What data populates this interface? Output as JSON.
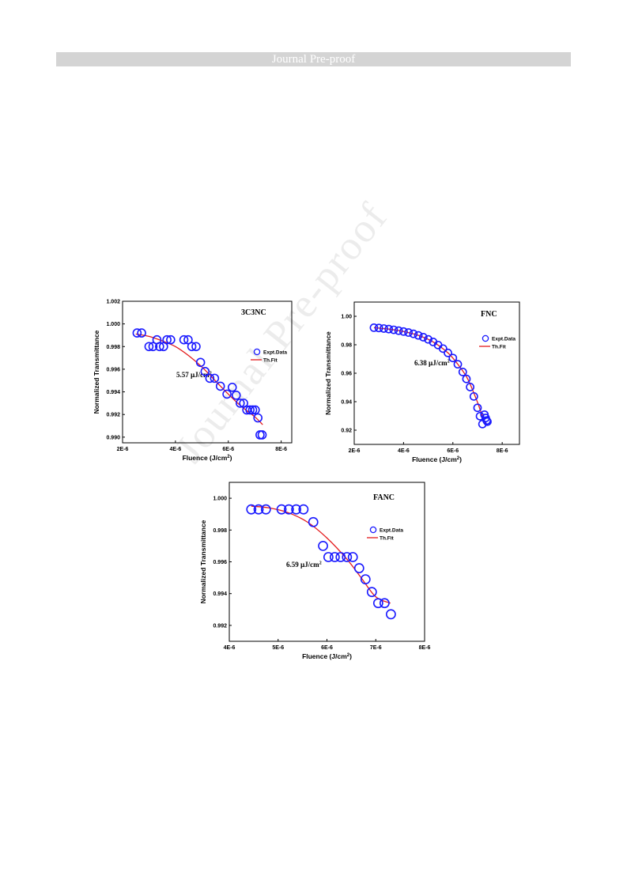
{
  "header": {
    "banner": "Journal Pre-proof"
  },
  "watermark": "Journal Pre-proof",
  "colors": {
    "marker": "#1a1aff",
    "fit": "#e31a1c",
    "banner_bg": "#d4d4d4"
  },
  "chart_data": [
    {
      "type": "scatter",
      "title": "3C3NC",
      "xlabel": "Fluence (J/cm",
      "xlabel_sup": "2",
      "xlabel_end": ")",
      "ylabel": "Normalized Transmittance",
      "xlim": [
        2e-06,
        8.4e-06
      ],
      "ylim": [
        0.9895,
        1.002
      ],
      "xticks": [
        2e-06,
        4e-06,
        6e-06,
        8e-06
      ],
      "xtick_labels": [
        "2E-6",
        "4E-6",
        "6E-6",
        "8E-6"
      ],
      "yticks": [
        0.99,
        0.992,
        0.994,
        0.996,
        0.998,
        1.0,
        1.002
      ],
      "ytick_labels": [
        "0.990",
        "0.992",
        "0.994",
        "0.996",
        "0.998",
        "1.000",
        "1.002"
      ],
      "annotation": "5.57 µJ/cm",
      "annotation_sup": "2",
      "legend": {
        "data_label": "Expt.Data",
        "fit_label": "Th.Fit"
      },
      "series": [
        {
          "name": "Expt.Data",
          "x": [
            2.55e-06,
            2.72e-06,
            3e-06,
            3.15e-06,
            3.3e-06,
            3.4e-06,
            3.55e-06,
            3.68e-06,
            3.82e-06,
            4.32e-06,
            4.48e-06,
            4.62e-06,
            4.78e-06,
            4.95e-06,
            5.12e-06,
            5.3e-06,
            5.48e-06,
            5.7e-06,
            5.95e-06,
            6.15e-06,
            6.3e-06,
            6.45e-06,
            6.58e-06,
            6.7e-06,
            6.82e-06,
            6.92e-06,
            7.02e-06,
            7.12e-06,
            7.2e-06,
            7.28e-06
          ],
          "y": [
            0.9992,
            0.9992,
            0.998,
            0.998,
            0.9986,
            0.998,
            0.998,
            0.9986,
            0.9986,
            0.9986,
            0.9986,
            0.998,
            0.998,
            0.9966,
            0.9958,
            0.9952,
            0.9952,
            0.9945,
            0.9938,
            0.9944,
            0.9937,
            0.993,
            0.993,
            0.9924,
            0.9924,
            0.9924,
            0.9924,
            0.9917,
            0.9902,
            0.9902
          ]
        },
        {
          "name": "Th.Fit",
          "x": [
            2.5e-06,
            3e-06,
            3.5e-06,
            4e-06,
            4.5e-06,
            5e-06,
            5.5e-06,
            6e-06,
            6.5e-06,
            7e-06,
            7.3e-06
          ],
          "y": [
            0.9991,
            0.9989,
            0.9985,
            0.998,
            0.9972,
            0.9962,
            0.995,
            0.9938,
            0.9927,
            0.9918,
            0.9911
          ]
        }
      ]
    },
    {
      "type": "scatter",
      "title": "FNC",
      "xlabel": "Fluence (J/cm",
      "xlabel_sup": "2",
      "xlabel_end": ")",
      "ylabel": "Normalized Transmittance",
      "xlim": [
        2e-06,
        8.7e-06
      ],
      "ylim": [
        0.91,
        1.01
      ],
      "xticks": [
        2e-06,
        4e-06,
        6e-06,
        8e-06
      ],
      "xtick_labels": [
        "2E-6",
        "4E-6",
        "6E-6",
        "8E-6"
      ],
      "yticks": [
        0.92,
        0.94,
        0.96,
        0.98,
        1.0
      ],
      "ytick_labels": [
        "0.92",
        "0.94",
        "0.96",
        "0.98",
        "1.00"
      ],
      "annotation": "6.38 µJ/cm",
      "annotation_sup": "2",
      "legend": {
        "data_label": "Expt.Data",
        "fit_label": "Th.Fit"
      },
      "series": [
        {
          "name": "Expt.Data",
          "x": [
            2.8e-06,
            3e-06,
            3.2e-06,
            3.4e-06,
            3.6e-06,
            3.8e-06,
            4e-06,
            4.2e-06,
            4.4e-06,
            4.6e-06,
            4.8e-06,
            5e-06,
            5.2e-06,
            5.4e-06,
            5.6e-06,
            5.8e-06,
            6e-06,
            6.2e-06,
            6.4e-06,
            6.55e-06,
            6.7e-06,
            6.85e-06,
            7e-06,
            7.1e-06,
            7.2e-06,
            7.28e-06,
            7.33e-06,
            7.37e-06,
            7.4e-06
          ],
          "y": [
            0.992,
            0.9918,
            0.9914,
            0.991,
            0.9905,
            0.9899,
            0.9893,
            0.9886,
            0.9877,
            0.9866,
            0.9853,
            0.9838,
            0.982,
            0.9798,
            0.9773,
            0.9743,
            0.9707,
            0.9663,
            0.9609,
            0.956,
            0.9503,
            0.9437,
            0.9357,
            0.9298,
            0.9243,
            0.9309,
            0.9286,
            0.9268,
            0.926
          ]
        },
        {
          "name": "Th.Fit",
          "x": [
            2.8e-06,
            3.4e-06,
            4e-06,
            4.6e-06,
            5.2e-06,
            5.8e-06,
            6.2e-06,
            6.6e-06,
            7e-06,
            7.2e-06,
            7.35e-06
          ],
          "y": [
            0.992,
            0.991,
            0.9893,
            0.9866,
            0.982,
            0.9743,
            0.9663,
            0.956,
            0.9395,
            0.9295,
            0.924
          ]
        }
      ]
    },
    {
      "type": "scatter",
      "title": "FANC",
      "xlabel": "Fluence (J/cm",
      "xlabel_sup": "2",
      "xlabel_end": ")",
      "ylabel": "Normalized Transmittance",
      "xlim": [
        4e-06,
        8e-06
      ],
      "ylim": [
        0.991,
        1.001
      ],
      "xticks": [
        4e-06,
        5e-06,
        6e-06,
        7e-06,
        8e-06
      ],
      "xtick_labels": [
        "4E-6",
        "5E-6",
        "6E-6",
        "7E-6",
        "8E-6"
      ],
      "yticks": [
        0.992,
        0.994,
        0.996,
        0.998,
        1.0
      ],
      "ytick_labels": [
        "0.992",
        "0.994",
        "0.996",
        "0.998",
        "1.000"
      ],
      "annotation": "6.59 µJ/cm",
      "annotation_sup": "2",
      "legend": {
        "data_label": "Expt.Data",
        "fit_label": "Th.Fit"
      },
      "series": [
        {
          "name": "Expt.Data",
          "x": [
            4.45e-06,
            4.6e-06,
            4.75e-06,
            5.07e-06,
            5.22e-06,
            5.37e-06,
            5.52e-06,
            5.72e-06,
            5.92e-06,
            6.03e-06,
            6.16e-06,
            6.28e-06,
            6.41e-06,
            6.53e-06,
            6.66e-06,
            6.79e-06,
            6.92e-06,
            7.05e-06,
            7.18e-06,
            7.31e-06
          ],
          "y": [
            0.9993,
            0.9993,
            0.9993,
            0.9993,
            0.9993,
            0.9993,
            0.9993,
            0.9985,
            0.997,
            0.9963,
            0.9963,
            0.9963,
            0.9963,
            0.9963,
            0.9956,
            0.9949,
            0.9941,
            0.9934,
            0.9934,
            0.9927
          ]
        },
        {
          "name": "Th.Fit",
          "x": [
            4.45e-06,
            4.8e-06,
            5.2e-06,
            5.6e-06,
            6e-06,
            6.4e-06,
            6.7e-06,
            7e-06,
            7.3e-06
          ],
          "y": [
            0.9995,
            0.9994,
            0.9991,
            0.9985,
            0.9975,
            0.9962,
            0.995,
            0.9938,
            0.9934
          ]
        }
      ]
    }
  ]
}
